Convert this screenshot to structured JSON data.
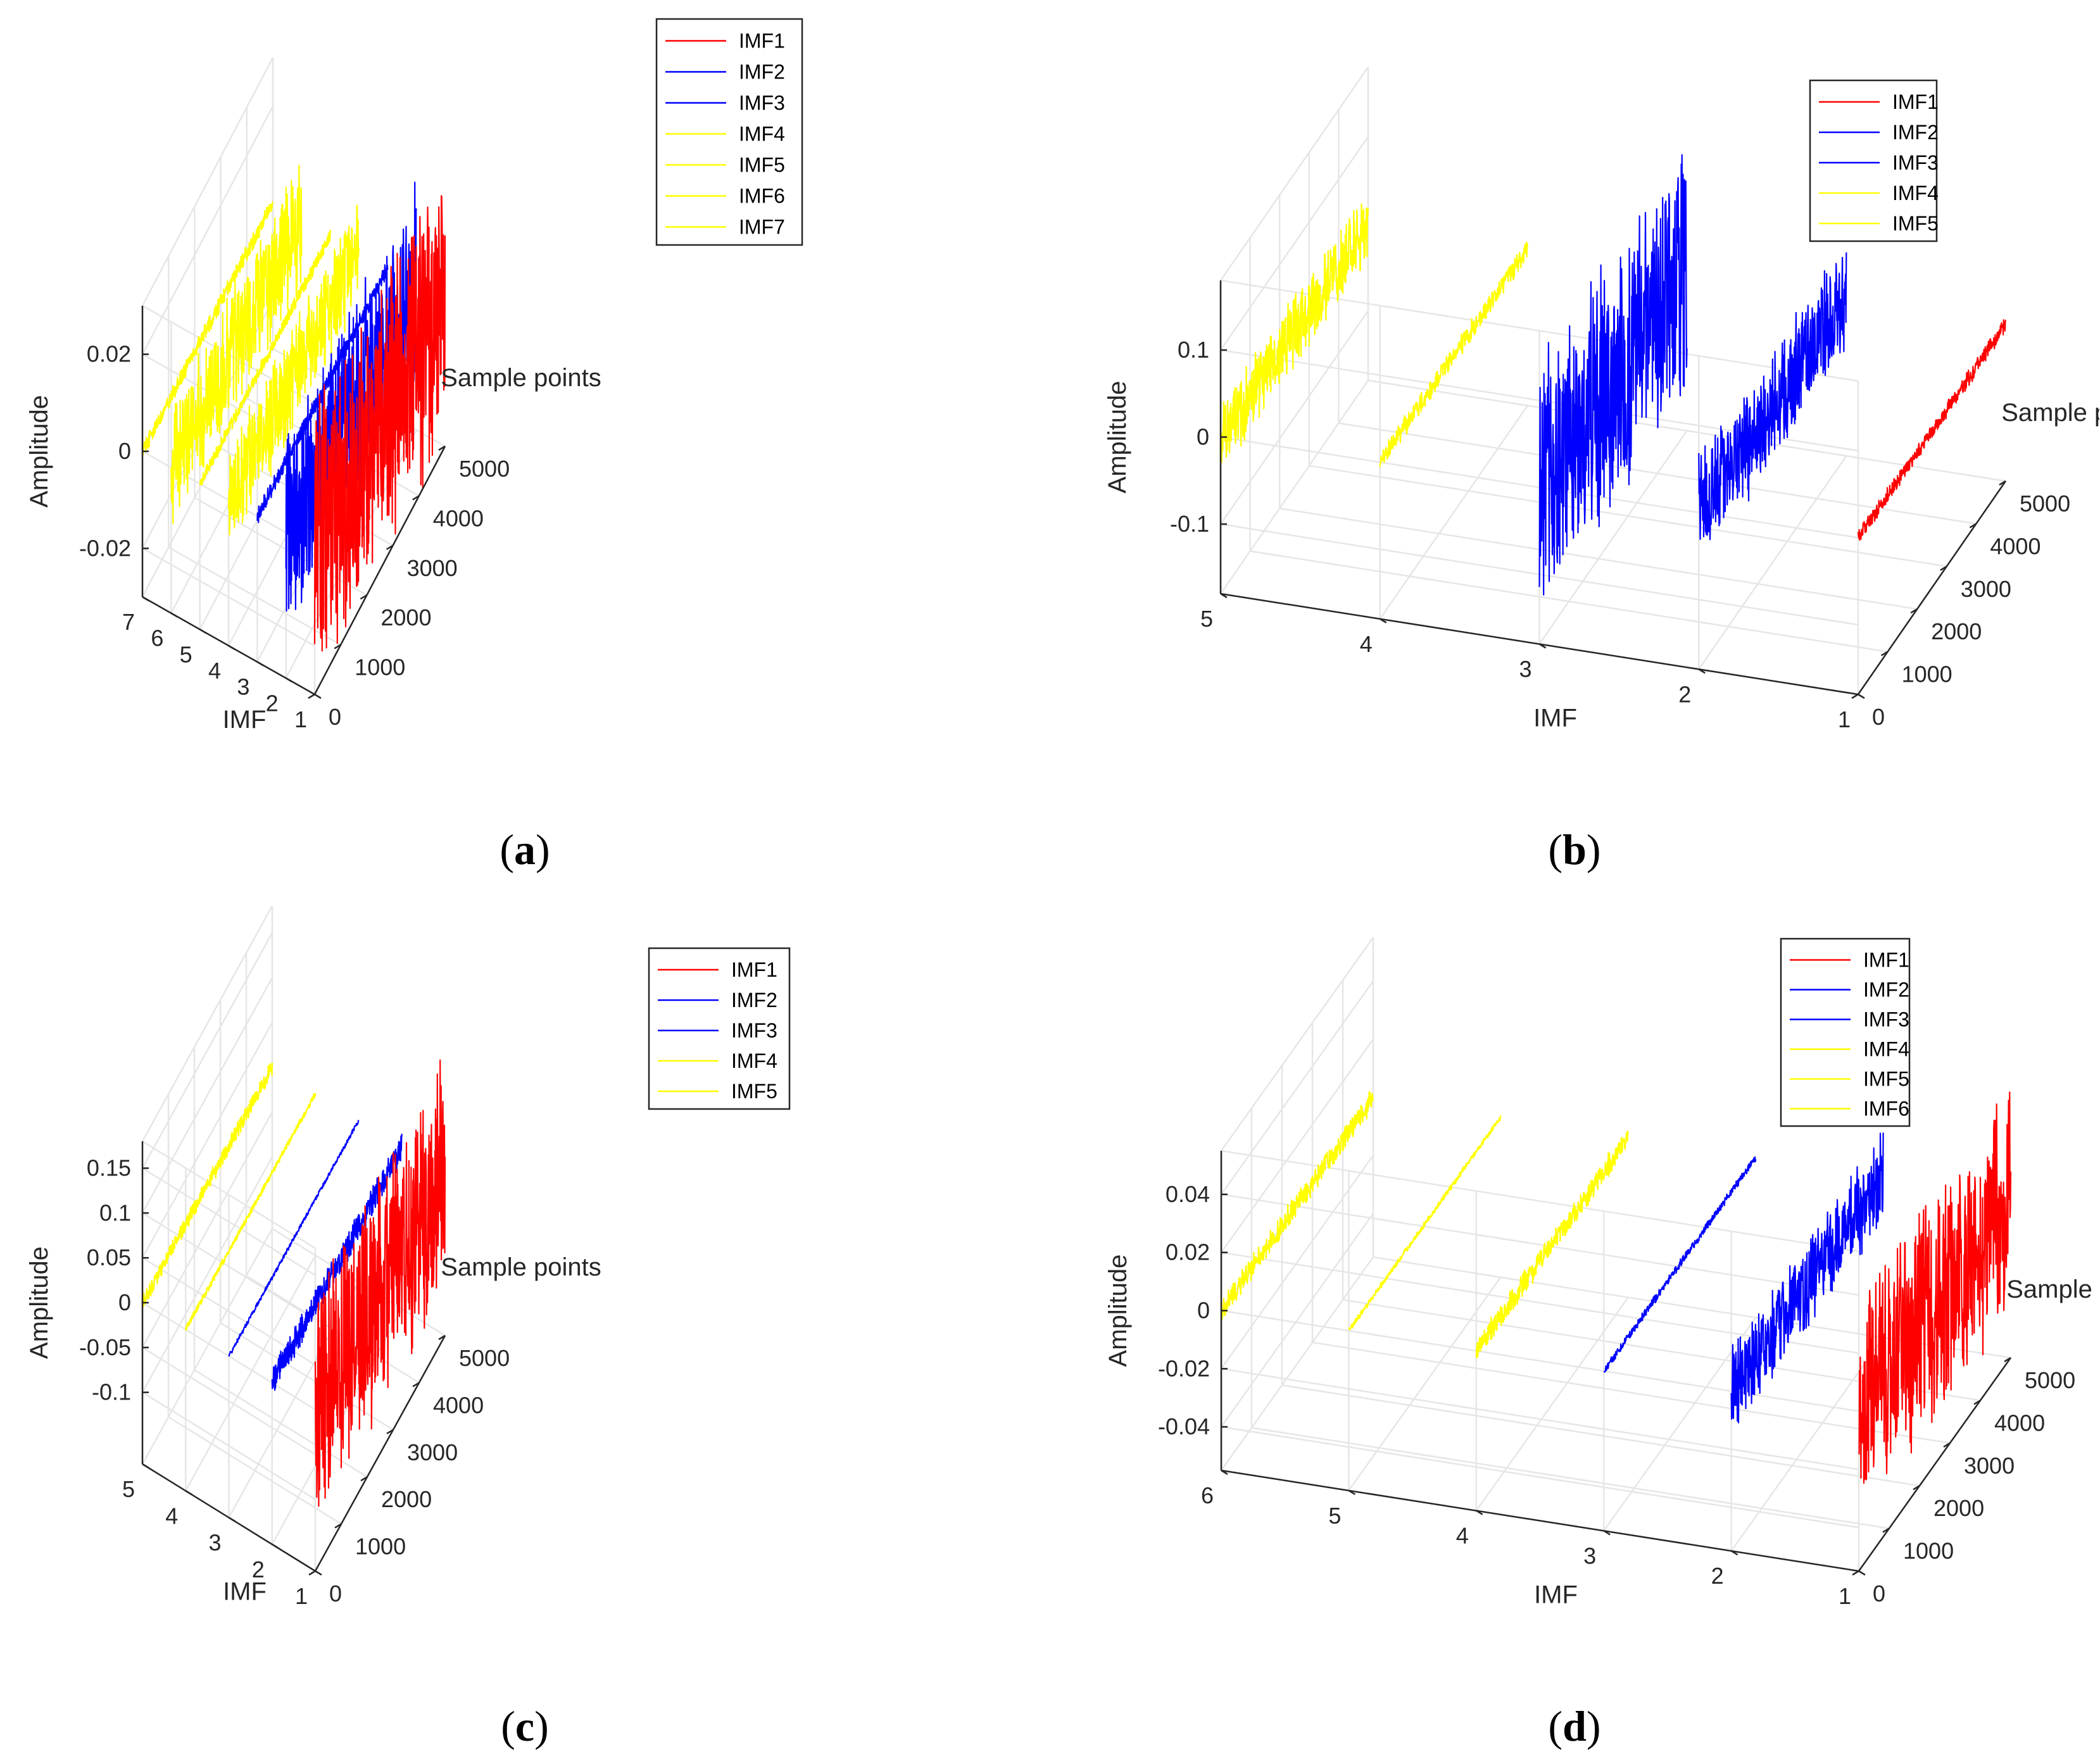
{
  "figure": {
    "colors": {
      "red": "#ff0000",
      "blue": "#0000ff",
      "yellow": "#ffff00",
      "grid": "#e6e6e6",
      "axis": "#262626"
    }
  },
  "chart_data": [
    {
      "id": "a",
      "type": "line",
      "caption": {
        "open": "(",
        "letter": "a",
        "close": ")"
      },
      "xlabel": "Sample points",
      "ylabel": "IMF",
      "zlabel": "Amplitude",
      "x_range": [
        0,
        5000
      ],
      "x_ticks": [
        "0",
        "1000",
        "2000",
        "3000",
        "4000",
        "5000"
      ],
      "y_range": [
        1,
        7
      ],
      "y_ticks": [
        "1",
        "2",
        "3",
        "4",
        "5",
        "6",
        "7"
      ],
      "z_range": [
        -0.03,
        0.03
      ],
      "z_ticks": [
        "-0.02",
        "0",
        "0.02"
      ],
      "z_tick_values": [
        -0.02,
        0,
        0.02
      ],
      "legend": {
        "position": "top-right",
        "labels": [
          "IMF1",
          "IMF2",
          "IMF3",
          "IMF4",
          "IMF5",
          "IMF6",
          "IMF7"
        ]
      },
      "series": [
        {
          "name": "IMF1",
          "color": "#ff0000",
          "imf_index": 1,
          "amplitude": 0.024,
          "noise_seed": 11
        },
        {
          "name": "IMF2",
          "color": "#0000ff",
          "imf_index": 2,
          "amplitude": 0.018,
          "noise_seed": 12
        },
        {
          "name": "IMF3",
          "color": "#0000ff",
          "imf_index": 3,
          "amplitude": 0.0015,
          "noise_seed": 13
        },
        {
          "name": "IMF4",
          "color": "#ffff00",
          "imf_index": 4,
          "amplitude": 0.009,
          "noise_seed": 14
        },
        {
          "name": "IMF5",
          "color": "#ffff00",
          "imf_index": 5,
          "amplitude": 0.0012,
          "noise_seed": 15
        },
        {
          "name": "IMF6",
          "color": "#ffff00",
          "imf_index": 6,
          "amplitude": 0.011,
          "noise_seed": 16
        },
        {
          "name": "IMF7",
          "color": "#ffff00",
          "imf_index": 7,
          "amplitude": 0.0015,
          "noise_seed": 17
        }
      ]
    },
    {
      "id": "b",
      "type": "line",
      "caption": {
        "open": "(",
        "letter": "b",
        "close": ")"
      },
      "xlabel": "Sample points",
      "ylabel": "IMF",
      "zlabel": "Amplitude",
      "x_range": [
        0,
        5000
      ],
      "x_ticks": [
        "0",
        "1000",
        "2000",
        "3000",
        "4000",
        "5000"
      ],
      "y_range": [
        1,
        5
      ],
      "y_ticks": [
        "1",
        "2",
        "3",
        "4",
        "5"
      ],
      "z_range": [
        -0.18,
        0.18
      ],
      "z_ticks": [
        "-0.1",
        "0",
        "0.1"
      ],
      "z_tick_values": [
        -0.1,
        0,
        0.1
      ],
      "legend": {
        "position": "top-right",
        "labels": [
          "IMF1",
          "IMF2",
          "IMF3",
          "IMF4",
          "IMF5"
        ]
      },
      "series": [
        {
          "name": "IMF1",
          "color": "#ff0000",
          "imf_index": 1,
          "amplitude": 0.008,
          "noise_seed": 21
        },
        {
          "name": "IMF2",
          "color": "#0000ff",
          "imf_index": 2,
          "amplitude": 0.055,
          "noise_seed": 22
        },
        {
          "name": "IMF3",
          "color": "#0000ff",
          "imf_index": 3,
          "amplitude": 0.12,
          "noise_seed": 23
        },
        {
          "name": "IMF4",
          "color": "#ffff00",
          "imf_index": 4,
          "amplitude": 0.01,
          "noise_seed": 24
        },
        {
          "name": "IMF5",
          "color": "#ffff00",
          "imf_index": 5,
          "amplitude": 0.035,
          "noise_seed": 25
        }
      ]
    },
    {
      "id": "c",
      "type": "line",
      "caption": {
        "open": "(",
        "letter": "c",
        "close": ")"
      },
      "xlabel": "Sample points",
      "ylabel": "IMF",
      "zlabel": "Amplitude",
      "x_range": [
        0,
        5000
      ],
      "x_ticks": [
        "0",
        "1000",
        "2000",
        "3000",
        "4000",
        "5000"
      ],
      "y_range": [
        1,
        5
      ],
      "y_ticks": [
        "1",
        "2",
        "3",
        "4",
        "5"
      ],
      "z_range": [
        -0.18,
        0.18
      ],
      "z_ticks": [
        "-0.1",
        "-0.05",
        "0",
        "0.05",
        "0.1",
        "0.15"
      ],
      "z_tick_values": [
        -0.1,
        -0.05,
        0,
        0.05,
        0.1,
        0.15
      ],
      "legend": {
        "position": "top-right",
        "labels": [
          "IMF1",
          "IMF2",
          "IMF3",
          "IMF4",
          "IMF5"
        ]
      },
      "series": [
        {
          "name": "IMF1",
          "color": "#ff0000",
          "imf_index": 1,
          "amplitude": 0.11,
          "noise_seed": 31
        },
        {
          "name": "IMF2",
          "color": "#0000ff",
          "imf_index": 2,
          "amplitude": 0.014,
          "noise_seed": 32
        },
        {
          "name": "IMF3",
          "color": "#0000ff",
          "imf_index": 3,
          "amplitude": 0.002,
          "noise_seed": 33
        },
        {
          "name": "IMF4",
          "color": "#ffff00",
          "imf_index": 4,
          "amplitude": 0.003,
          "noise_seed": 34
        },
        {
          "name": "IMF5",
          "color": "#ffff00",
          "imf_index": 5,
          "amplitude": 0.008,
          "noise_seed": 35
        }
      ]
    },
    {
      "id": "d",
      "type": "line",
      "caption": {
        "open": "(",
        "letter": "d",
        "close": ")"
      },
      "xlabel": "Sample points",
      "ylabel": "IMF",
      "zlabel": "Amplitude",
      "x_range": [
        0,
        5000
      ],
      "x_ticks": [
        "0",
        "1000",
        "2000",
        "3000",
        "4000",
        "5000"
      ],
      "y_range": [
        1,
        6
      ],
      "y_ticks": [
        "1",
        "2",
        "3",
        "4",
        "5",
        "6"
      ],
      "z_range": [
        -0.055,
        0.055
      ],
      "z_ticks": [
        "-0.04",
        "-0.02",
        "0",
        "0.02",
        "0.04"
      ],
      "z_tick_values": [
        -0.04,
        -0.02,
        0,
        0.02,
        0.04
      ],
      "legend": {
        "position": "top-right",
        "labels": [
          "IMF1",
          "IMF2",
          "IMF3",
          "IMF4",
          "IMF5",
          "IMF6"
        ]
      },
      "series": [
        {
          "name": "IMF1",
          "color": "#ff0000",
          "imf_index": 1,
          "amplitude": 0.032,
          "noise_seed": 41
        },
        {
          "name": "IMF2",
          "color": "#0000ff",
          "imf_index": 2,
          "amplitude": 0.013,
          "noise_seed": 42
        },
        {
          "name": "IMF3",
          "color": "#0000ff",
          "imf_index": 3,
          "amplitude": 0.0012,
          "noise_seed": 43
        },
        {
          "name": "IMF4",
          "color": "#ffff00",
          "imf_index": 4,
          "amplitude": 0.0035,
          "noise_seed": 44
        },
        {
          "name": "IMF5",
          "color": "#ffff00",
          "imf_index": 5,
          "amplitude": 0.0008,
          "noise_seed": 45
        },
        {
          "name": "IMF6",
          "color": "#ffff00",
          "imf_index": 6,
          "amplitude": 0.0035,
          "noise_seed": 46
        }
      ]
    }
  ]
}
